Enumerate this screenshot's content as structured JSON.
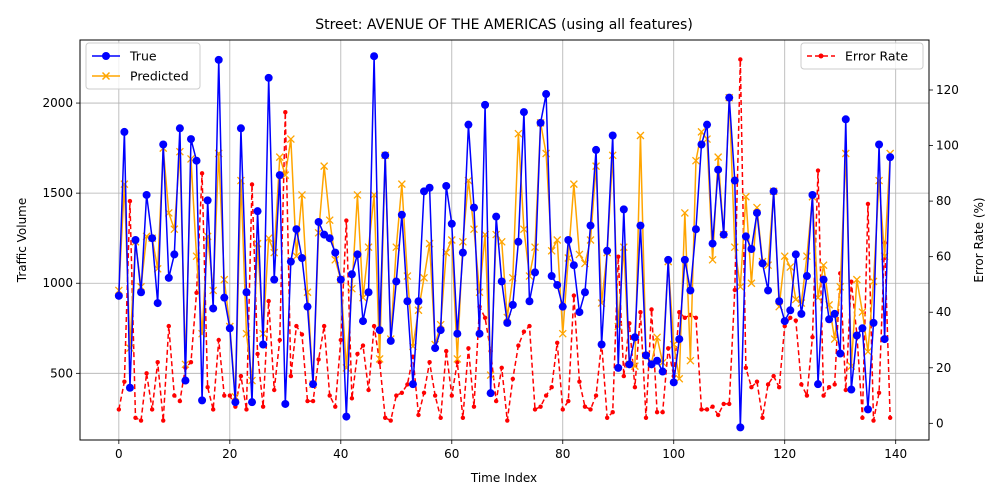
{
  "chart_data": {
    "type": "line",
    "title": "Street: AVENUE OF THE AMERICAS (using all features)",
    "xlabel": "Time Index",
    "ylabel": "Traffic Volume",
    "y2label": "Error Rate (%)",
    "xlim": [
      -7,
      146
    ],
    "ylim": [
      130,
      2350
    ],
    "y2lim": [
      -6,
      138
    ],
    "xticks": [
      0,
      20,
      40,
      60,
      80,
      100,
      120,
      140
    ],
    "yticks": [
      500,
      1000,
      1500,
      2000
    ],
    "y2ticks": [
      0,
      20,
      40,
      60,
      80,
      100,
      120
    ],
    "grid": true,
    "legend_left": "upper-left",
    "legend_right": "upper-right",
    "colors": {
      "true": "#0000ff",
      "predicted": "#ffa500",
      "error": "#ff0000"
    },
    "series": [
      {
        "name": "True",
        "axis": "left",
        "marker": "o",
        "values": [
          930,
          1840,
          420,
          1240,
          950,
          1490,
          1250,
          890,
          1770,
          1030,
          1160,
          1860,
          460,
          1800,
          1680,
          350,
          1460,
          860,
          2240,
          920,
          750,
          340,
          1860,
          950,
          340,
          1400,
          660,
          2140,
          1020,
          1600,
          330,
          1120,
          1300,
          1140,
          870,
          440,
          1340,
          1270,
          1250,
          1170,
          1020,
          260,
          1050,
          1160,
          790,
          950,
          2260,
          740,
          1710,
          680,
          1010,
          1380,
          900,
          440,
          900,
          1510,
          1530,
          640,
          740,
          1540,
          1330,
          720,
          1170,
          1880,
          1420,
          720,
          1990,
          390,
          1370,
          1010,
          780,
          880,
          1230,
          1950,
          900,
          1060,
          1890,
          2050,
          1040,
          990,
          870,
          1240,
          1100,
          840,
          950,
          1320,
          1740,
          660,
          1180,
          1820,
          530,
          1410,
          550,
          700,
          1320,
          600,
          550,
          570,
          510,
          1130,
          450,
          690,
          1130,
          960,
          1300,
          1770,
          1880,
          1220,
          1630,
          1270,
          2030,
          1570,
          200,
          1260,
          1190,
          1390,
          1110,
          960,
          1510,
          900,
          790,
          850,
          1160,
          830,
          1040,
          1490,
          440,
          1020,
          800,
          830,
          610,
          1910,
          410,
          710,
          750,
          300,
          780,
          1770,
          690,
          1700
        ]
      },
      {
        "name": "Predicted",
        "axis": "left",
        "marker": "x",
        "values": [
          960,
          1550,
          640,
          1230,
          980,
          1260,
          1250,
          1080,
          1750,
          1390,
          1300,
          1730,
          550,
          1690,
          1150,
          720,
          1260,
          960,
          1720,
          1020,
          760,
          370,
          1570,
          720,
          460,
          1220,
          720,
          1250,
          1170,
          1700,
          1600,
          1800,
          1150,
          1490,
          950,
          440,
          1280,
          1650,
          1350,
          1130,
          1020,
          530,
          970,
          1490,
          920,
          1200,
          1490,
          580,
          1710,
          690,
          1200,
          1550,
          1040,
          650,
          850,
          1030,
          1220,
          660,
          770,
          1170,
          1240,
          580,
          1230,
          1570,
          1300,
          950,
          1270,
          490,
          1270,
          1230,
          810,
          1030,
          1830,
          1300,
          1040,
          1200,
          1890,
          1720,
          1180,
          1240,
          720,
          1140,
          1550,
          1160,
          1110,
          1240,
          1650,
          890,
          1170,
          1710,
          760,
          1200,
          550,
          540,
          1820,
          600,
          560,
          700,
          560,
          1120,
          660,
          470,
          1390,
          570,
          1680,
          1840,
          1800,
          1130,
          1700,
          1270,
          2030,
          1200,
          980,
          1480,
          1000,
          1420,
          1120,
          1100,
          1510,
          870,
          1150,
          1090,
          910,
          890,
          1150,
          1480,
          920,
          1100,
          880,
          690,
          980,
          1720,
          540,
          1020,
          840,
          620,
          1010,
          1570,
          1150,
          1720
        ]
      },
      {
        "name": "Error Rate",
        "axis": "right",
        "marker": "dot",
        "linestyle": "dashed",
        "values": [
          5,
          15,
          80,
          2,
          1,
          18,
          5,
          22,
          1,
          35,
          10,
          8,
          20,
          22,
          47,
          90,
          13,
          5,
          30,
          10,
          10,
          6,
          17,
          5,
          86,
          25,
          6,
          44,
          12,
          30,
          112,
          17,
          35,
          32,
          8,
          8,
          23,
          35,
          10,
          6,
          30,
          73,
          9,
          25,
          28,
          12,
          35,
          22,
          2,
          1,
          10,
          11,
          14,
          24,
          3,
          11,
          22,
          10,
          2,
          26,
          10,
          22,
          2,
          27,
          6,
          42,
          38,
          26,
          8,
          20,
          1,
          16,
          28,
          33,
          35,
          5,
          6,
          10,
          13,
          29,
          5,
          8,
          46,
          15,
          6,
          5,
          10,
          29,
          2,
          4,
          60,
          17,
          36,
          13,
          40,
          2,
          41,
          4,
          4,
          27,
          17,
          40,
          38,
          39,
          38,
          5,
          5,
          6,
          3,
          7,
          7,
          48,
          131,
          20,
          13,
          15,
          2,
          14,
          17,
          13,
          35,
          38,
          37,
          14,
          10,
          31,
          91,
          10,
          13,
          14,
          54,
          12,
          51,
          32,
          2,
          79,
          1,
          11,
          65,
          2
        ]
      }
    ]
  }
}
